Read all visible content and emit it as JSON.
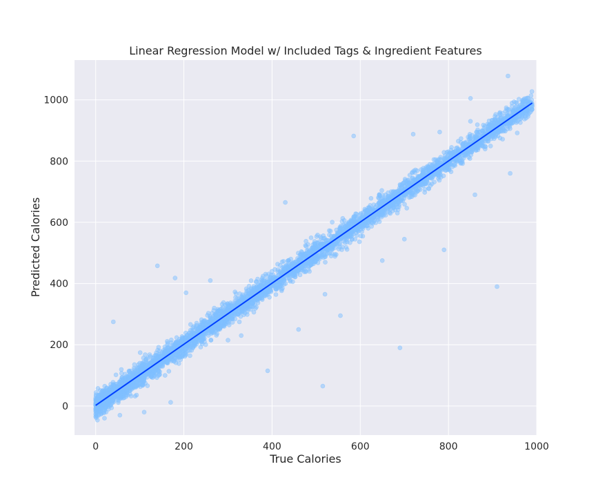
{
  "chart_data": {
    "type": "scatter",
    "title": "Linear Regression Model w/ Included Tags & Ingredient Features",
    "xlabel": "True Calories",
    "ylabel": "Predicted Calories",
    "xlim": [
      -48,
      1000
    ],
    "ylim": [
      -95,
      1130
    ],
    "xticks": [
      0,
      200,
      400,
      600,
      800,
      1000
    ],
    "yticks": [
      0,
      200,
      400,
      600,
      800,
      1000
    ],
    "grid": true,
    "legend": "none",
    "colors": {
      "background": "#eaeaf2",
      "grid": "#ffffff",
      "points": "#80bfff",
      "fit_line": "#0040ff"
    },
    "fit_line": {
      "x": [
        0,
        990
      ],
      "y": [
        2,
        990
      ]
    },
    "series": [
      {
        "points_total": 4500,
        "dense_cloud": {
          "x_range": [
            0,
            990
          ],
          "relation": "y ≈ x",
          "spread": 18
        },
        "outliers": [
          [
            0,
            -35
          ],
          [
            20,
            -40
          ],
          [
            55,
            -30
          ],
          [
            110,
            -20
          ],
          [
            170,
            12
          ],
          [
            40,
            275
          ],
          [
            140,
            458
          ],
          [
            180,
            418
          ],
          [
            205,
            370
          ],
          [
            260,
            410
          ],
          [
            390,
            115
          ],
          [
            430,
            665
          ],
          [
            515,
            65
          ],
          [
            555,
            295
          ],
          [
            585,
            882
          ],
          [
            690,
            190
          ],
          [
            790,
            510
          ],
          [
            850,
            1005
          ],
          [
            910,
            390
          ],
          [
            935,
            1078
          ],
          [
            720,
            888
          ],
          [
            780,
            895
          ],
          [
            940,
            760
          ],
          [
            860,
            690
          ],
          [
            700,
            545
          ],
          [
            520,
            365
          ],
          [
            460,
            250
          ],
          [
            650,
            475
          ],
          [
            300,
            215
          ],
          [
            330,
            230
          ]
        ]
      }
    ]
  }
}
